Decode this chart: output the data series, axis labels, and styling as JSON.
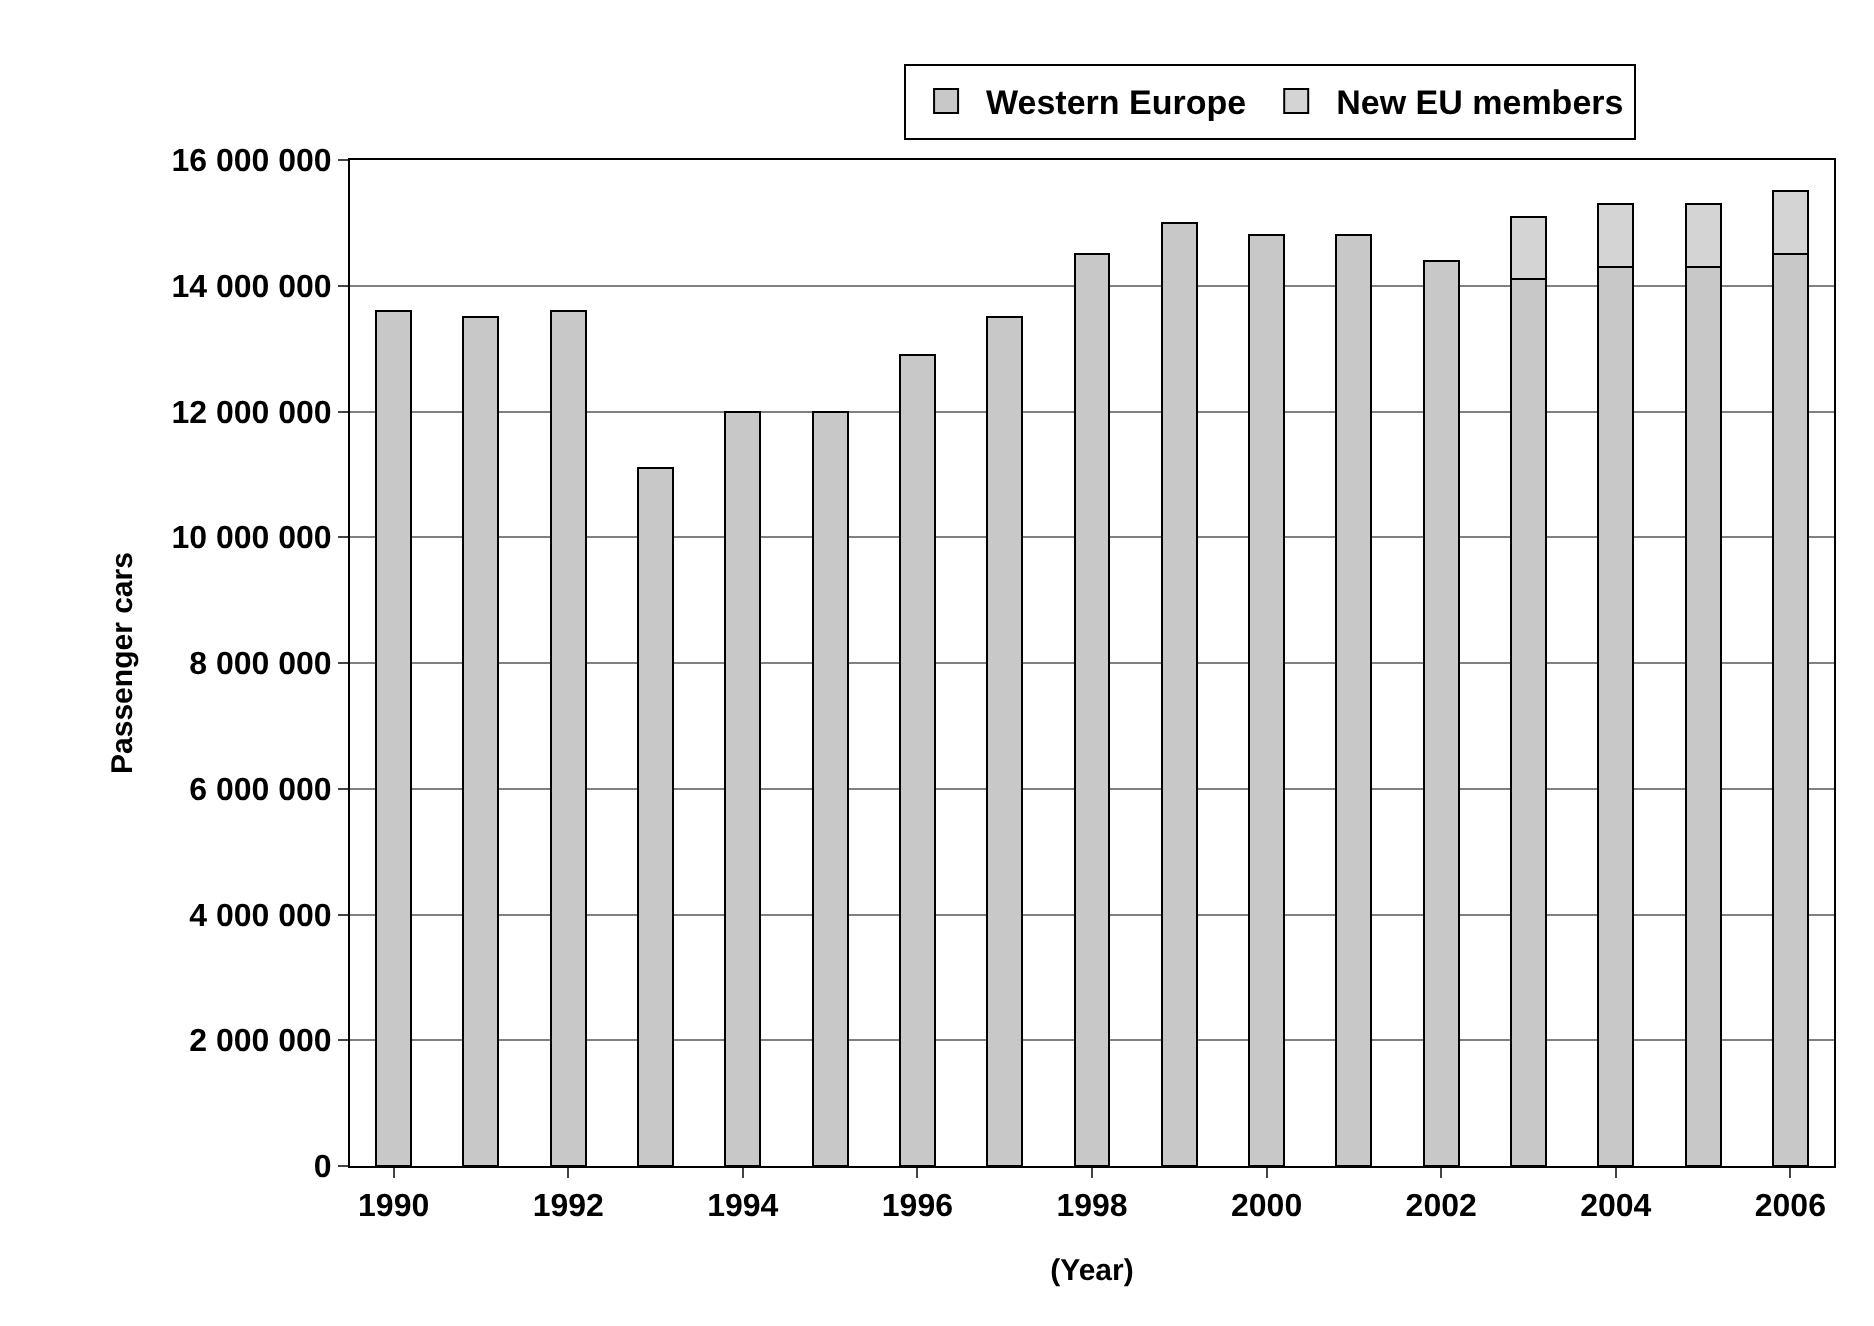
{
  "chart_data": {
    "type": "bar",
    "stacked": true,
    "xlabel": "(Year)",
    "ylabel": "Passenger cars",
    "x": [
      1990,
      1991,
      1992,
      1993,
      1994,
      1995,
      1996,
      1997,
      1998,
      1999,
      2000,
      2001,
      2002,
      2003,
      2004,
      2005,
      2006
    ],
    "series": [
      {
        "name": "Western Europe",
        "color": "#c8c8c8",
        "values": [
          13600000,
          13500000,
          13600000,
          11100000,
          12000000,
          12000000,
          12900000,
          13500000,
          14500000,
          15000000,
          14800000,
          14800000,
          14400000,
          14100000,
          14300000,
          14300000,
          14500000
        ]
      },
      {
        "name": "New EU members",
        "color": "#d4d4d4",
        "values": [
          null,
          null,
          null,
          null,
          null,
          null,
          null,
          null,
          null,
          null,
          null,
          null,
          null,
          1000000,
          1000000,
          1000000,
          1000000
        ]
      }
    ],
    "xlim": [
      1989.5,
      2006.5
    ],
    "xticks": [
      1990,
      1992,
      1994,
      1996,
      1998,
      2000,
      2002,
      2004,
      2006
    ],
    "ylim": [
      0,
      16000000
    ],
    "yticks": [
      {
        "value": 0,
        "label": "0"
      },
      {
        "value": 2000000,
        "label": "2 000 000"
      },
      {
        "value": 4000000,
        "label": "4 000 000"
      },
      {
        "value": 6000000,
        "label": "6 000 000"
      },
      {
        "value": 8000000,
        "label": "8 000 000"
      },
      {
        "value": 10000000,
        "label": "10 000 000"
      },
      {
        "value": 12000000,
        "label": "12 000 000"
      },
      {
        "value": 14000000,
        "label": "14 000 000"
      },
      {
        "value": 16000000,
        "label": "16 000 000"
      }
    ],
    "grid": "y",
    "legend": "top"
  }
}
